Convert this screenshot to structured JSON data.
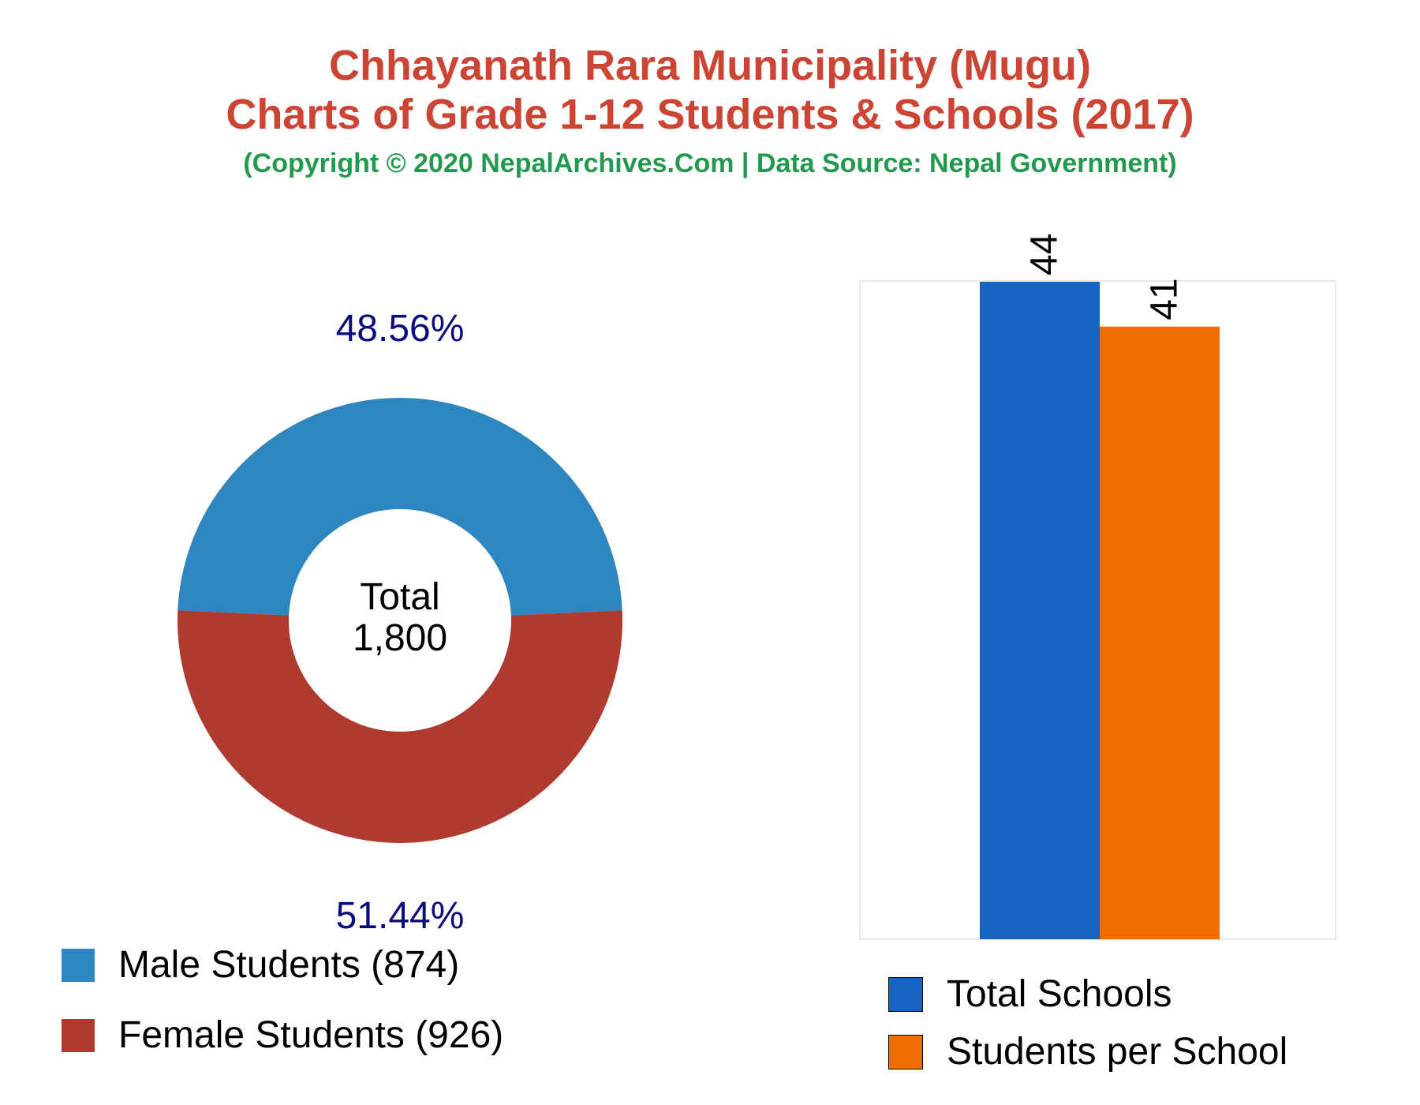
{
  "titles": {
    "line1": "Chhayanath Rara Municipality (Mugu)",
    "line2": "Charts of Grade 1-12 Students & Schools (2017)",
    "subtitle": "(Copyright © 2020 NepalArchives.Com | Data Source: Nepal Government)"
  },
  "chart_data": [
    {
      "type": "pie",
      "variant": "donut",
      "center_label": "Total",
      "center_value": "1,800",
      "slices": [
        {
          "label": "Male Students (874)",
          "value": 874,
          "pct_label": "48.56%",
          "color": "#2e86c1"
        },
        {
          "label": "Female Students (926)",
          "value": 926,
          "pct_label": "51.44%",
          "color": "#ae3a30"
        }
      ],
      "pct_label_color": "#0b0b80"
    },
    {
      "type": "bar",
      "categories": [
        "Total Schools",
        "Students per School"
      ],
      "values": [
        44,
        41
      ],
      "value_labels": [
        "44",
        "41"
      ],
      "colors": [
        "#1764c0",
        "#ef6c00"
      ],
      "ylim": [
        0,
        44
      ],
      "grid": false,
      "legend": "bottom"
    }
  ]
}
